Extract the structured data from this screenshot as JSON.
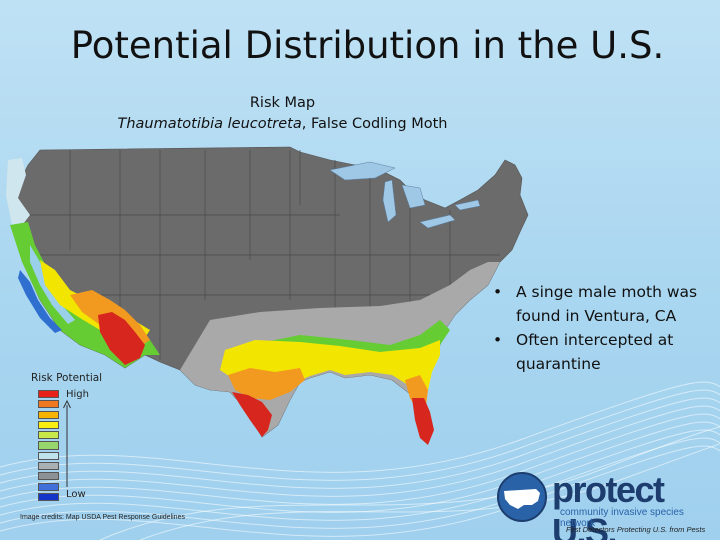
{
  "slide": {
    "title": "Potential Distribution in the U.S."
  },
  "map": {
    "caption_line1": "Risk Map",
    "caption_species": "Thaumatotibia leucotreta",
    "caption_common": ", False Codling Moth",
    "colors": {
      "unsuitable": "#6b6b6b",
      "light_grey": "#a9a9a9",
      "light_blue": "#cfe6ee",
      "green": "#66cc33",
      "yellow": "#f2e600",
      "orange": "#f29a1f",
      "red": "#d7261e"
    }
  },
  "legend": {
    "title": "Risk Potential",
    "high_label": "High",
    "low_label": "Low",
    "swatches": [
      "#e8201a",
      "#f07820",
      "#f6b400",
      "#f8ee10",
      "#c8e84a",
      "#96d66a",
      "#bfe3ec",
      "#a8b0b4",
      "#8c9296",
      "#3f6fd8",
      "#1234c8"
    ]
  },
  "bullets": [
    "A singe male moth was found in Ventura, CA",
    "Often intercepted at quarantine"
  ],
  "credit": "Image credits: Map USDA Pest Response Guidelines",
  "logo": {
    "name": "protect U.S.",
    "subtitle": "community invasive species network",
    "tagline": "First Detectors Protecting U.S. from Pests"
  }
}
